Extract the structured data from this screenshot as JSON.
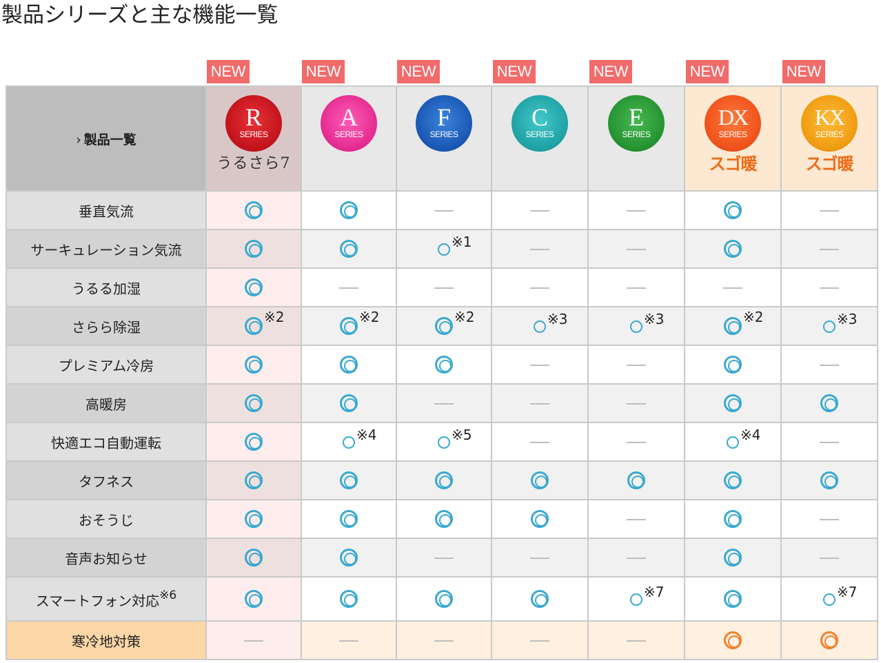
{
  "page": {
    "title": "製品シリーズと主な機能一覧"
  },
  "new_label": "NEW",
  "header": {
    "label_chevron": "›",
    "label": "製品一覧",
    "series": [
      {
        "key": "R",
        "letter": "R",
        "sub": "SERIES",
        "color": "red",
        "tag": "うるさら7",
        "tag_style": "serif"
      },
      {
        "key": "A",
        "letter": "A",
        "sub": "SERIES",
        "color": "pink",
        "tag": ""
      },
      {
        "key": "F",
        "letter": "F",
        "sub": "SERIES",
        "color": "blue",
        "tag": ""
      },
      {
        "key": "C",
        "letter": "C",
        "sub": "SERIES",
        "color": "teal",
        "tag": ""
      },
      {
        "key": "E",
        "letter": "E",
        "sub": "SERIES",
        "color": "green",
        "tag": ""
      },
      {
        "key": "DX",
        "letter": "DX",
        "sub": "SERIES",
        "color": "orange",
        "tag": "スゴ暖",
        "tag_style": "sugo"
      },
      {
        "key": "KX",
        "letter": "KX",
        "sub": "SERIES",
        "color": "gold",
        "tag": "スゴ暖",
        "tag_style": "sugo"
      }
    ]
  },
  "rows": [
    {
      "label": "垂直気流",
      "cells": [
        [
          "dbl",
          ""
        ],
        [
          "dbl",
          ""
        ],
        [
          "dash",
          ""
        ],
        [
          "dash",
          ""
        ],
        [
          "dash",
          ""
        ],
        [
          "dbl",
          ""
        ],
        [
          "dash",
          ""
        ]
      ]
    },
    {
      "label": "サーキュレーション気流",
      "cells": [
        [
          "dbl",
          ""
        ],
        [
          "dbl",
          ""
        ],
        [
          "sgl",
          "※1"
        ],
        [
          "dash",
          ""
        ],
        [
          "dash",
          ""
        ],
        [
          "dbl",
          ""
        ],
        [
          "dash",
          ""
        ]
      ]
    },
    {
      "label": "うるる加湿",
      "cells": [
        [
          "dbl",
          ""
        ],
        [
          "dash",
          ""
        ],
        [
          "dash",
          ""
        ],
        [
          "dash",
          ""
        ],
        [
          "dash",
          ""
        ],
        [
          "dash",
          ""
        ],
        [
          "dash",
          ""
        ]
      ]
    },
    {
      "label": "さらら除湿",
      "cells": [
        [
          "dbl",
          "※2"
        ],
        [
          "dbl",
          "※2"
        ],
        [
          "dbl",
          "※2"
        ],
        [
          "sgl",
          "※3"
        ],
        [
          "sgl",
          "※3"
        ],
        [
          "dbl",
          "※2"
        ],
        [
          "sgl",
          "※3"
        ]
      ]
    },
    {
      "label": "プレミアム冷房",
      "cells": [
        [
          "dbl",
          ""
        ],
        [
          "dbl",
          ""
        ],
        [
          "dbl",
          ""
        ],
        [
          "dash",
          ""
        ],
        [
          "dash",
          ""
        ],
        [
          "dbl",
          ""
        ],
        [
          "dash",
          ""
        ]
      ]
    },
    {
      "label": "高暖房",
      "cells": [
        [
          "dbl",
          ""
        ],
        [
          "dbl",
          ""
        ],
        [
          "dash",
          ""
        ],
        [
          "dash",
          ""
        ],
        [
          "dash",
          ""
        ],
        [
          "dbl",
          ""
        ],
        [
          "dbl",
          ""
        ]
      ]
    },
    {
      "label": "快適エコ自動運転",
      "cells": [
        [
          "dbl",
          ""
        ],
        [
          "sgl",
          "※4"
        ],
        [
          "sgl",
          "※5"
        ],
        [
          "dash",
          ""
        ],
        [
          "dash",
          ""
        ],
        [
          "sgl",
          "※4"
        ],
        [
          "dash",
          ""
        ]
      ]
    },
    {
      "label": "タフネス",
      "cells": [
        [
          "dbl",
          ""
        ],
        [
          "dbl",
          ""
        ],
        [
          "dbl",
          ""
        ],
        [
          "dbl",
          ""
        ],
        [
          "dbl",
          ""
        ],
        [
          "dbl",
          ""
        ],
        [
          "dbl",
          ""
        ]
      ]
    },
    {
      "label": "おそうじ",
      "cells": [
        [
          "dbl",
          ""
        ],
        [
          "dbl",
          ""
        ],
        [
          "dbl",
          ""
        ],
        [
          "dbl",
          ""
        ],
        [
          "dash",
          ""
        ],
        [
          "dbl",
          ""
        ],
        [
          "dash",
          ""
        ]
      ]
    },
    {
      "label": "音声お知らせ",
      "cells": [
        [
          "dbl",
          ""
        ],
        [
          "dbl",
          ""
        ],
        [
          "dash",
          ""
        ],
        [
          "dash",
          ""
        ],
        [
          "dash",
          ""
        ],
        [
          "dbl",
          ""
        ],
        [
          "dash",
          ""
        ]
      ]
    },
    {
      "label": "スマートフォン対応",
      "label_note": "※6",
      "cells": [
        [
          "dbl",
          ""
        ],
        [
          "dbl",
          ""
        ],
        [
          "dbl",
          ""
        ],
        [
          "dbl",
          ""
        ],
        [
          "sgl",
          "※7"
        ],
        [
          "dbl",
          ""
        ],
        [
          "sgl",
          "※7"
        ]
      ]
    },
    {
      "label": "寒冷地対策",
      "cells": [
        [
          "dash",
          ""
        ],
        [
          "dash",
          ""
        ],
        [
          "dash",
          ""
        ],
        [
          "dash",
          ""
        ],
        [
          "dash",
          ""
        ],
        [
          "dbl-or",
          ""
        ],
        [
          "dbl-or",
          ""
        ]
      ]
    }
  ],
  "colors": {
    "new_badge": "#f26b6b",
    "double_circle": "#39a9cf",
    "double_circle_cold": "#f27f2b"
  }
}
